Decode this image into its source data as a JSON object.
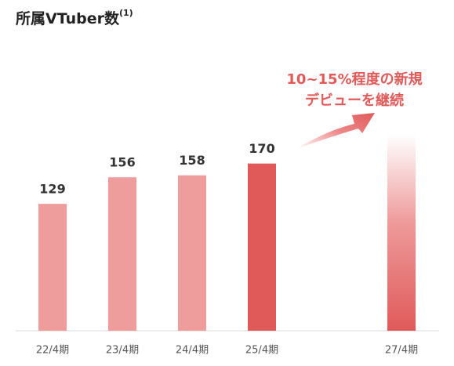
{
  "chart_data": {
    "type": "bar",
    "title": "所属VTuber数",
    "title_note": "(1)",
    "categories": [
      "22/4期",
      "23/4期",
      "24/4期",
      "25/4期",
      null,
      "27/4期"
    ],
    "values": [
      129,
      156,
      158,
      170,
      null,
      200
    ],
    "value_labels": [
      "129",
      "156",
      "158",
      "170",
      null,
      null
    ],
    "colors": [
      "#ef9c9c",
      "#ef9c9c",
      "#ef9c9c",
      "#e05a5a",
      null,
      "gradient"
    ],
    "annotation": [
      "10~15%程度の新規",
      "デビューを継続"
    ]
  }
}
